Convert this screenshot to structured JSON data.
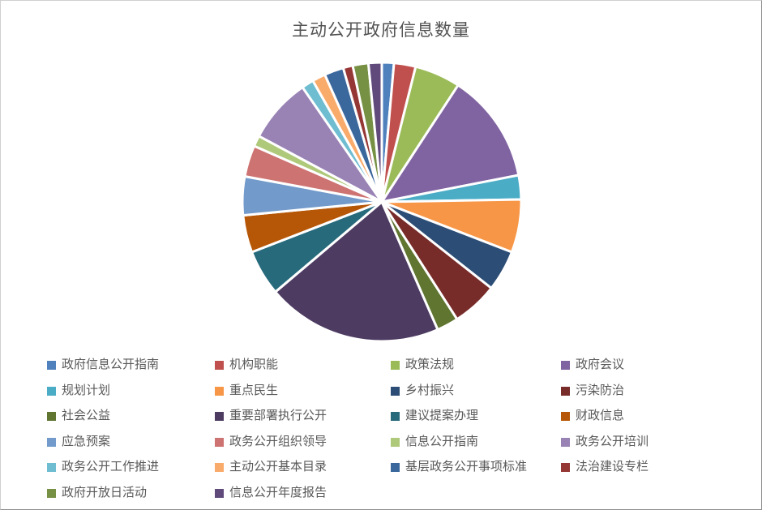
{
  "chart_data": {
    "type": "pie",
    "title": "主动公开政府信息数量",
    "title_color": "#535353",
    "legend_position": "bottom",
    "legend_columns": 4,
    "start_angle_deg": 0,
    "direction": "clockwise",
    "slice_border_color": "#FFFFFF",
    "background_color": "#FFFFFF",
    "total": 716,
    "items": [
      {
        "label": "政府信息公开指南",
        "value": 10,
        "color": "#4F81BD"
      },
      {
        "label": "机构职能",
        "value": 18,
        "color": "#C0504D"
      },
      {
        "label": "政策法规",
        "value": 38,
        "color": "#9BBB59"
      },
      {
        "label": "政府会议",
        "value": 91,
        "color": "#8064A2"
      },
      {
        "label": "规划计划",
        "value": 20,
        "color": "#4BACC6"
      },
      {
        "label": "重点民生",
        "value": 44,
        "color": "#F79646"
      },
      {
        "label": "乡村振兴",
        "value": 34,
        "color": "#2C4D75"
      },
      {
        "label": "污染防治",
        "value": 38,
        "color": "#772C2A"
      },
      {
        "label": "社会公益",
        "value": 18,
        "color": "#5F7530"
      },
      {
        "label": "重要部署执行公开",
        "value": 146,
        "color": "#4D3B62"
      },
      {
        "label": "建议提案办理",
        "value": 38,
        "color": "#276A7C"
      },
      {
        "label": "财政信息",
        "value": 31,
        "color": "#B65708"
      },
      {
        "label": "应急预案",
        "value": 32,
        "color": "#729ACA"
      },
      {
        "label": "政务公开组织领导",
        "value": 26,
        "color": "#CD7371"
      },
      {
        "label": "信息公开指南",
        "value": 9,
        "color": "#AFC97A"
      },
      {
        "label": "政务公开培训",
        "value": 54,
        "color": "#9983B5"
      },
      {
        "label": "政务公开工作推进",
        "value": 10,
        "color": "#6FBDD1"
      },
      {
        "label": "主动公开基本目录",
        "value": 11,
        "color": "#F9AB6B"
      },
      {
        "label": "基层政务公开事项标准",
        "value": 16,
        "color": "#3A679C"
      },
      {
        "label": "法治建设专栏",
        "value": 8,
        "color": "#953735"
      },
      {
        "label": "政府开放日活动",
        "value": 13,
        "color": "#769044"
      },
      {
        "label": "信息公开年度报告",
        "value": 11,
        "color": "#604A7B"
      }
    ]
  }
}
